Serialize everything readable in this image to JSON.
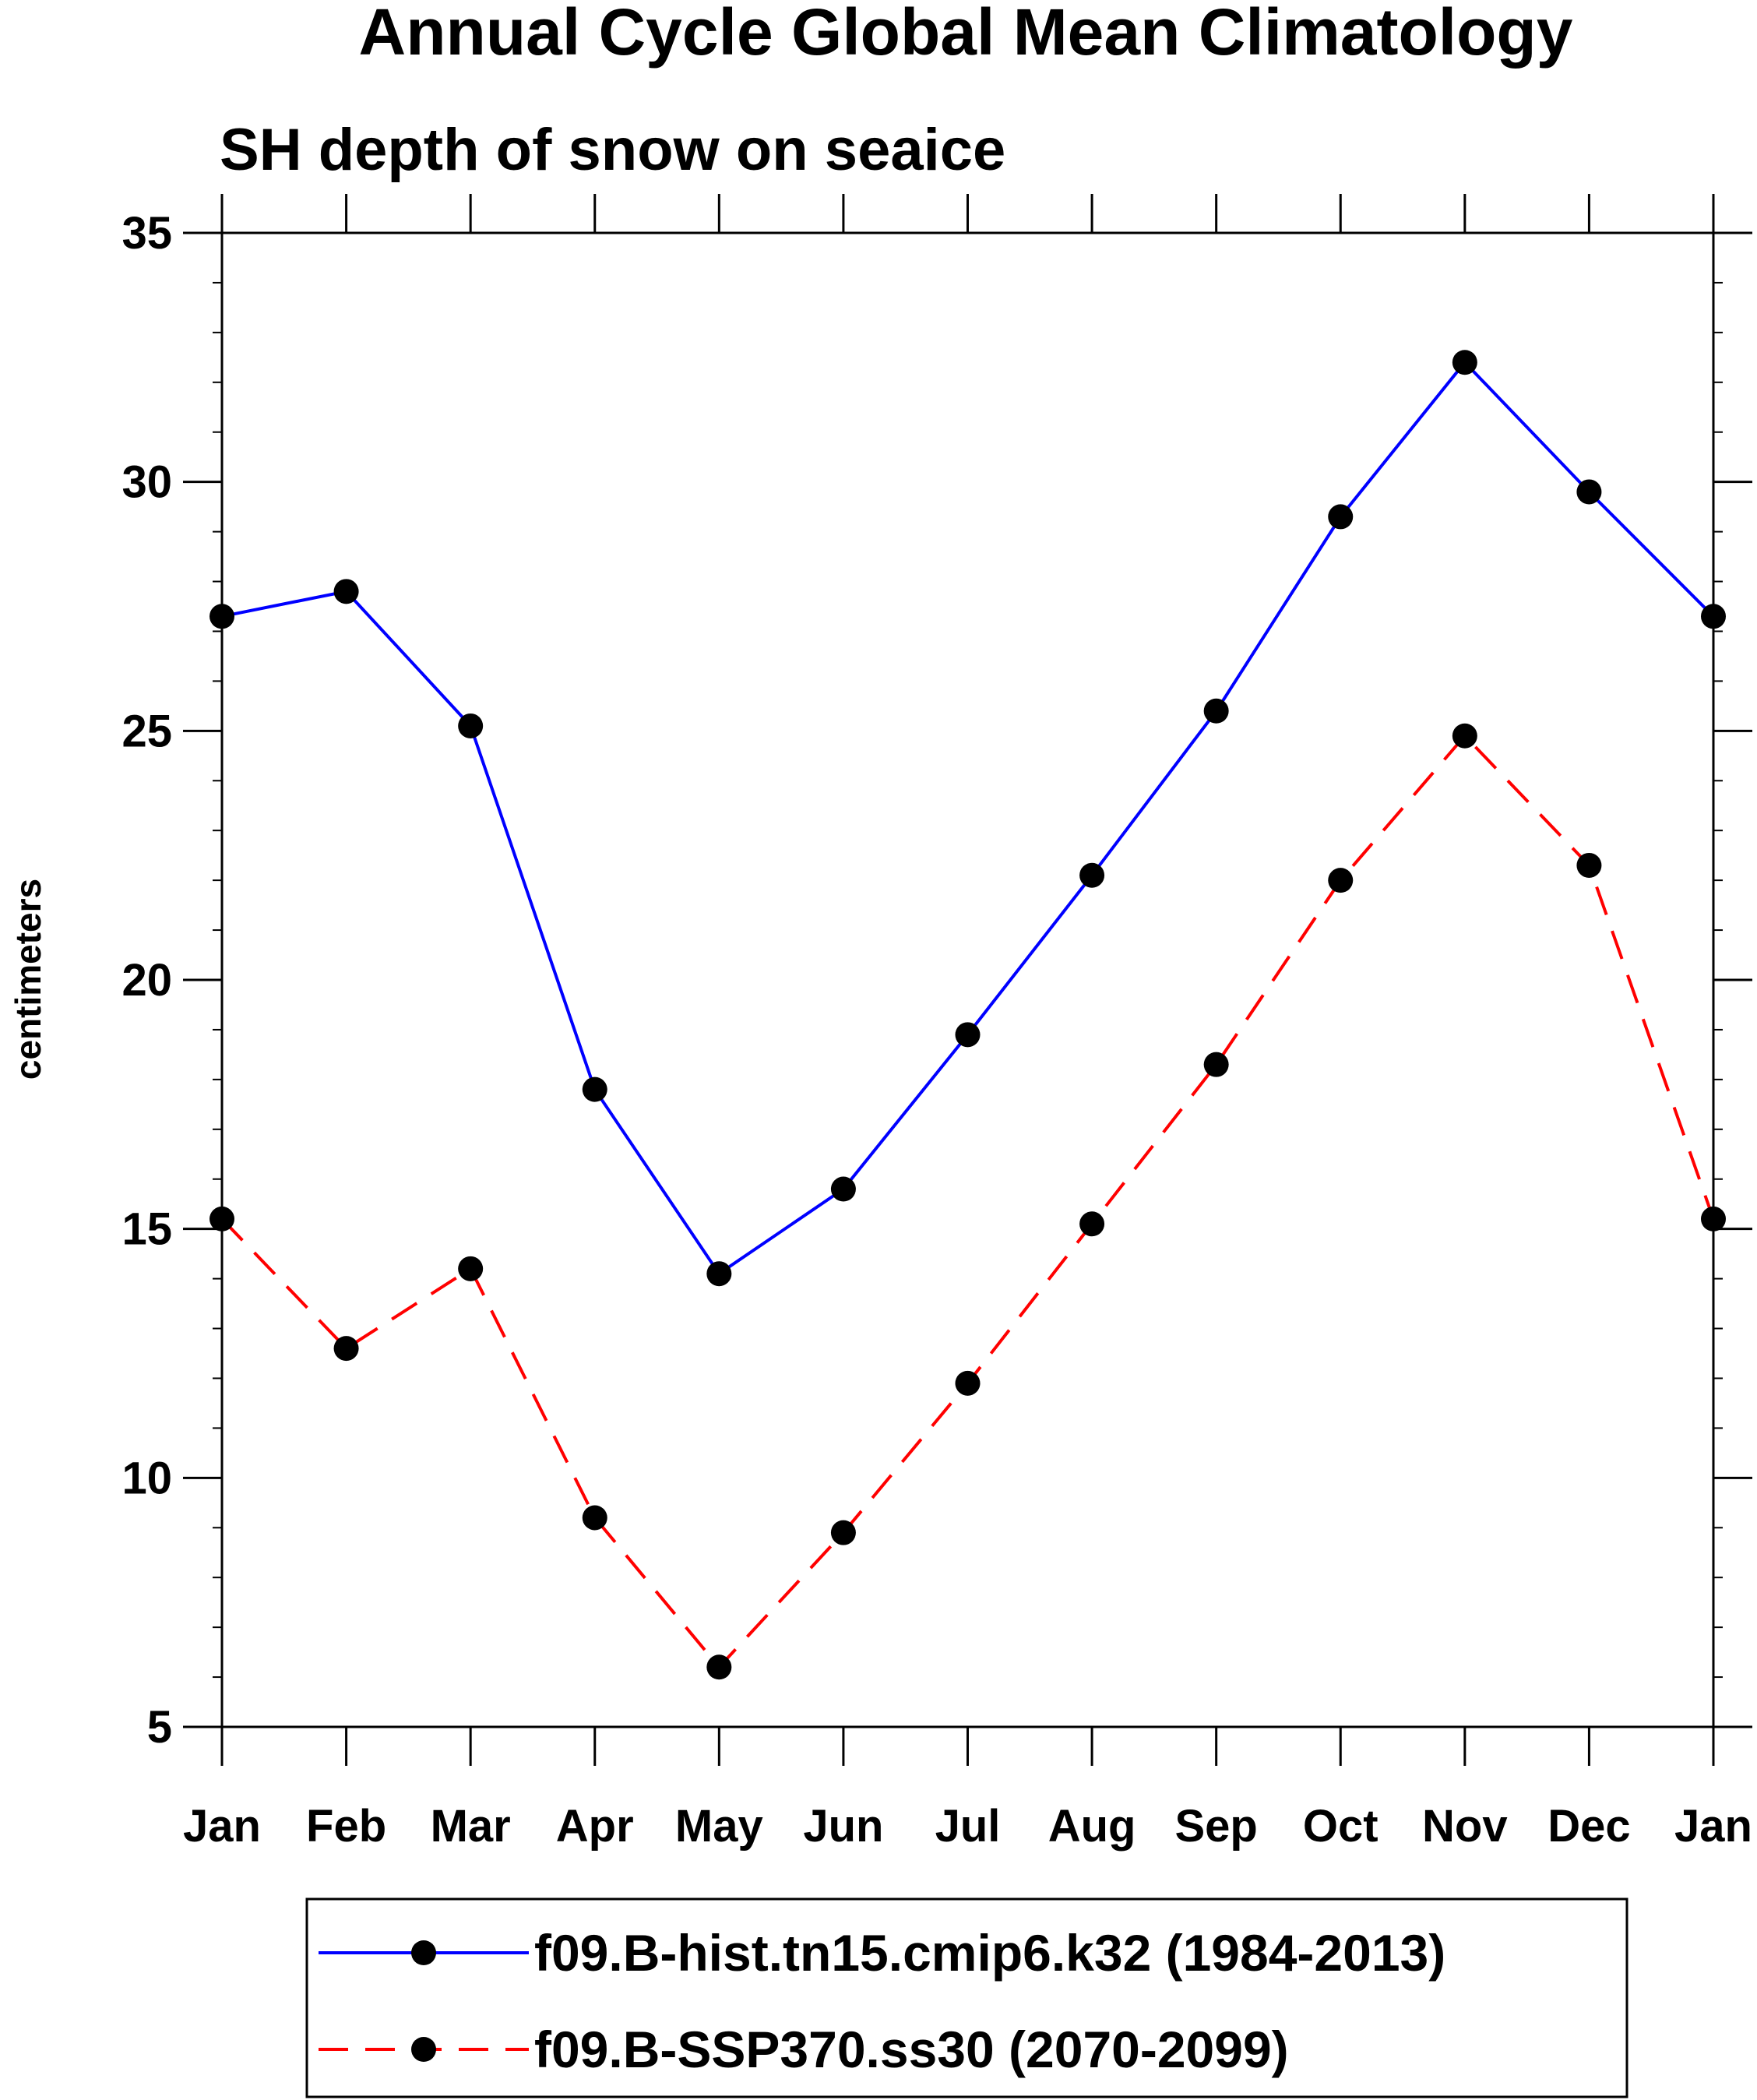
{
  "chart_data": {
    "type": "line",
    "title": "Annual Cycle Global Mean Climatology",
    "subtitle": "SH depth of snow on seaice",
    "xlabel": "",
    "ylabel": "centimeters",
    "categories": [
      "Jan",
      "Feb",
      "Mar",
      "Apr",
      "May",
      "Jun",
      "Jul",
      "Aug",
      "Sep",
      "Oct",
      "Nov",
      "Dec",
      "Jan"
    ],
    "ylim": [
      5,
      35
    ],
    "yticks": [
      5,
      10,
      15,
      20,
      25,
      30,
      35
    ],
    "y_minor_step": 1,
    "grid": false,
    "legend_position": "bottom",
    "series": [
      {
        "name": "f09.B-hist.tn15.cmip6.k32 (1984-2013)",
        "color": "#0000ff",
        "line_style": "solid",
        "marker": "filled-circle",
        "values": [
          27.3,
          27.8,
          25.1,
          17.8,
          14.1,
          15.8,
          18.9,
          22.1,
          25.4,
          29.3,
          32.4,
          29.8,
          27.3
        ]
      },
      {
        "name": "f09.B-SSP370.ss30 (2070-2099)",
        "color": "#ff0000",
        "line_style": "dashed",
        "marker": "filled-circle",
        "values": [
          15.2,
          12.6,
          14.2,
          9.2,
          6.2,
          8.9,
          11.9,
          15.1,
          18.3,
          22.0,
          24.9,
          22.3,
          15.2
        ]
      }
    ]
  }
}
